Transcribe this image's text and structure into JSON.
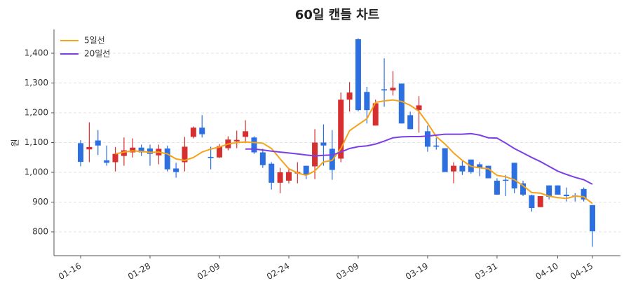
{
  "chart_data": {
    "type": "candlestick",
    "title": "60일 캔들 차트",
    "ylabel": "원",
    "categories": [
      "01-16",
      null,
      null,
      null,
      null,
      null,
      null,
      null,
      "01-28",
      null,
      null,
      null,
      null,
      null,
      null,
      null,
      "02-09",
      null,
      null,
      null,
      null,
      null,
      null,
      null,
      "02-24",
      null,
      null,
      null,
      null,
      null,
      null,
      null,
      "03-09",
      null,
      null,
      null,
      null,
      null,
      null,
      null,
      "03-19",
      null,
      null,
      null,
      null,
      null,
      null,
      null,
      "03-31",
      null,
      null,
      null,
      null,
      null,
      null,
      "04-10",
      null,
      null,
      null,
      "04-15"
    ],
    "open": [
      1098,
      1077,
      1107,
      1040,
      1034,
      1055,
      1067,
      1083,
      1080,
      1057,
      1080,
      1013,
      1034,
      1119,
      1150,
      1052,
      1050,
      1081,
      1104,
      1119,
      1117,
      1067,
      1029,
      965,
      972,
      996,
      1022,
      1020,
      1100,
      1079,
      1046,
      1244,
      1447,
      1270,
      1157,
      1279,
      1275,
      1298,
      1192,
      1209,
      1138,
      1090,
      1081,
      1003,
      1022,
      1043,
      1027,
      1022,
      972,
      975,
      1032,
      963,
      923,
      883,
      956,
      956,
      925,
      922,
      944,
      890
    ],
    "high": [
      1108,
      1168,
      1142,
      1090,
      1085,
      1117,
      1114,
      1093,
      1093,
      1093,
      1090,
      1032,
      1119,
      1154,
      1192,
      1086,
      1095,
      1121,
      1140,
      1175,
      1121,
      1079,
      1034,
      1015,
      1015,
      1034,
      1022,
      1145,
      1161,
      1142,
      1268,
      1303,
      1450,
      1287,
      1244,
      1383,
      1340,
      1298,
      1204,
      1256,
      1157,
      1116,
      1081,
      1034,
      1039,
      1043,
      1034,
      1022,
      980,
      991,
      1032,
      972,
      925,
      920,
      956,
      956,
      949,
      930,
      949,
      890
    ],
    "low": [
      1020,
      1034,
      1058,
      1022,
      1003,
      1022,
      1050,
      1055,
      1022,
      1027,
      1003,
      982,
      1003,
      1114,
      1117,
      1010,
      1048,
      1074,
      1081,
      1098,
      1062,
      1015,
      942,
      930,
      963,
      963,
      977,
      977,
      1022,
      975,
      1034,
      1204,
      1205,
      1164,
      1157,
      1220,
      1258,
      1164,
      1145,
      1133,
      1069,
      1076,
      1001,
      963,
      991,
      996,
      987,
      980,
      925,
      920,
      930,
      920,
      868,
      883,
      909,
      925,
      902,
      902,
      902,
      750
    ],
    "close": [
      1035,
      1085,
      1090,
      1032,
      1062,
      1074,
      1083,
      1067,
      1062,
      1079,
      1010,
      1001,
      1086,
      1150,
      1128,
      1048,
      1088,
      1110,
      1109,
      1138,
      1067,
      1024,
      965,
      1000,
      1001,
      1001,
      991,
      1100,
      1090,
      1008,
      1244,
      1268,
      1209,
      1209,
      1232,
      1275,
      1284,
      1164,
      1145,
      1225,
      1086,
      1086,
      1001,
      1022,
      1003,
      1001,
      1015,
      980,
      925,
      972,
      946,
      925,
      880,
      920,
      918,
      925,
      920,
      918,
      909,
      802
    ],
    "up_color": "#d62f2f",
    "down_color": "#2b6fe0",
    "series": [
      {
        "name": "5일선",
        "color": "#f5a31a",
        "values": [
          null,
          null,
          null,
          null,
          1062,
          1068,
          1072,
          1070,
          1067,
          1068,
          1062,
          1045,
          1040,
          1050,
          1068,
          1078,
          1085,
          1095,
          1100,
          1102,
          1100,
          1098,
          1080,
          1045,
          1012,
          998,
          990,
          1005,
          1035,
          1040,
          1080,
          1140,
          1160,
          1180,
          1235,
          1240,
          1243,
          1238,
          1225,
          1205,
          1165,
          1120,
          1095,
          1065,
          1040,
          1020,
          1015,
          1012,
          990,
          985,
          975,
          955,
          932,
          930,
          920,
          915,
          912,
          920,
          918,
          895
        ]
      },
      {
        "name": "20일선",
        "color": "#7b3fe4",
        "values": [
          null,
          null,
          null,
          null,
          null,
          null,
          null,
          null,
          null,
          null,
          null,
          null,
          null,
          null,
          null,
          null,
          null,
          null,
          null,
          1078,
          1078,
          1075,
          1071,
          1068,
          1065,
          1062,
          1058,
          1055,
          1057,
          1058,
          1068,
          1080,
          1086,
          1089,
          1095,
          1105,
          1116,
          1119,
          1120,
          1120,
          1122,
          1125,
          1128,
          1128,
          1128,
          1130,
          1125,
          1116,
          1115,
          1098,
          1080,
          1065,
          1050,
          1036,
          1020,
          1004,
          993,
          983,
          975,
          960
        ]
      }
    ],
    "ylim": [
      720,
      1480
    ],
    "yticks": [
      {
        "value": 800,
        "label": "800"
      },
      {
        "value": 900,
        "label": "900"
      },
      {
        "value": 1000,
        "label": "1,000"
      },
      {
        "value": 1100,
        "label": "1,100"
      },
      {
        "value": 1200,
        "label": "1,200"
      },
      {
        "value": 1300,
        "label": "1,300"
      },
      {
        "value": 1400,
        "label": "1,400"
      }
    ],
    "grid": true,
    "legend": "upper left"
  }
}
